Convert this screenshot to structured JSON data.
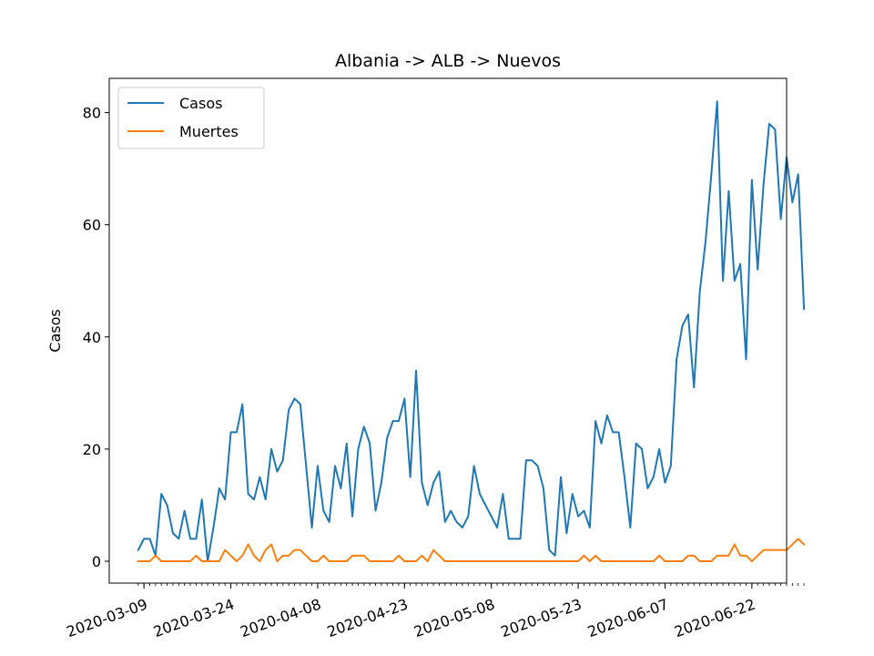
{
  "chart_data": {
    "type": "line",
    "title": "Albania -> ALB -> Nuevos",
    "xlabel": "",
    "ylabel": "Casos",
    "x_start": "2020-03-08",
    "x_tick_labels": [
      "2020-03-09",
      "2020-03-24",
      "2020-04-08",
      "2020-04-23",
      "2020-05-08",
      "2020-05-23",
      "2020-06-07",
      "2020-06-22"
    ],
    "x_tick_dates": [
      "2020-03-09",
      "2020-03-24",
      "2020-04-08",
      "2020-04-23",
      "2020-05-08",
      "2020-05-23",
      "2020-06-07",
      "2020-06-22"
    ],
    "y_ticks": [
      0,
      20,
      40,
      60,
      80
    ],
    "ylim": [
      -3.9,
      86.1
    ],
    "xlim": [
      "2020-03-03",
      "2020-06-28"
    ],
    "grid": false,
    "legend_position": "upper-left",
    "series": [
      {
        "name": "Casos",
        "color": "#1f77b4",
        "values": [
          2,
          4,
          4,
          1,
          12,
          10,
          5,
          4,
          9,
          4,
          4,
          11,
          0,
          6,
          13,
          11,
          23,
          23,
          28,
          12,
          11,
          15,
          11,
          20,
          16,
          18,
          27,
          29,
          28,
          17,
          6,
          17,
          9,
          7,
          17,
          13,
          21,
          8,
          20,
          24,
          21,
          9,
          14,
          22,
          25,
          25,
          29,
          15,
          34,
          14,
          10,
          14,
          16,
          7,
          9,
          7,
          6,
          8,
          17,
          12,
          10,
          8,
          6,
          12,
          4,
          4,
          4,
          18,
          18,
          17,
          13,
          2,
          1,
          15,
          5,
          12,
          8,
          9,
          6,
          25,
          21,
          26,
          23,
          23,
          15,
          6,
          21,
          20,
          13,
          15,
          20,
          14,
          17,
          36,
          42,
          44,
          31,
          48,
          57,
          69,
          82,
          50,
          66,
          50,
          53,
          36,
          68,
          52,
          67,
          78,
          77,
          61,
          72,
          64,
          69,
          45
        ]
      },
      {
        "name": "Muertes",
        "color": "#ff7f0e",
        "values": [
          0,
          0,
          0,
          1,
          0,
          0,
          0,
          0,
          0,
          0,
          1,
          0,
          0,
          0,
          0,
          2,
          1,
          0,
          1,
          3,
          1,
          0,
          2,
          3,
          0,
          1,
          1,
          2,
          2,
          1,
          0,
          0,
          1,
          0,
          0,
          0,
          0,
          1,
          1,
          1,
          0,
          0,
          0,
          0,
          0,
          1,
          0,
          0,
          0,
          1,
          0,
          2,
          1,
          0,
          0,
          0,
          0,
          0,
          0,
          0,
          0,
          0,
          0,
          0,
          0,
          0,
          0,
          0,
          0,
          0,
          0,
          0,
          0,
          0,
          0,
          0,
          0,
          1,
          0,
          1,
          0,
          0,
          0,
          0,
          0,
          0,
          0,
          0,
          0,
          0,
          1,
          0,
          0,
          0,
          0,
          1,
          1,
          0,
          0,
          0,
          1,
          1,
          1,
          3,
          1,
          1,
          0,
          1,
          2,
          2,
          2,
          2,
          2,
          3,
          4,
          3
        ]
      }
    ]
  }
}
